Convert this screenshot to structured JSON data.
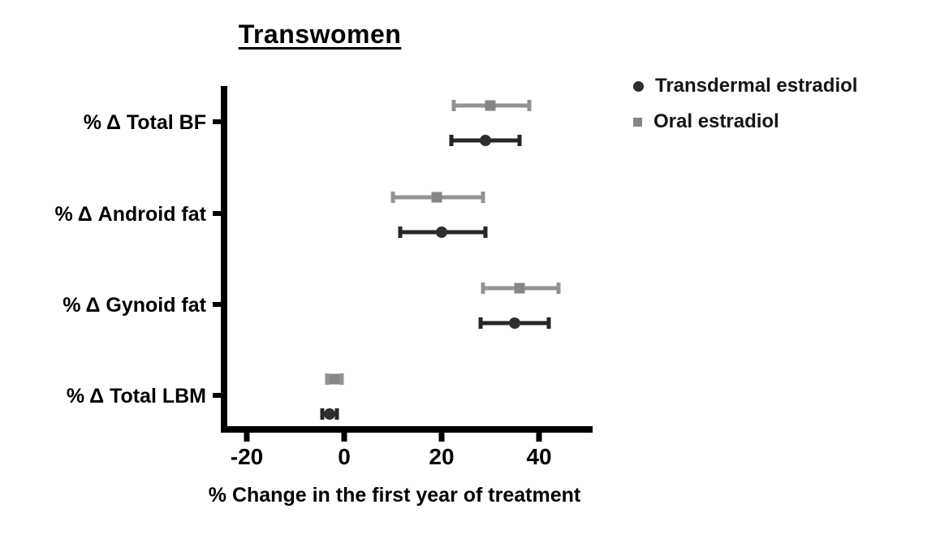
{
  "chart_data": {
    "type": "scatter",
    "subtype": "horizontal-forest-plot-with-error-bars",
    "title": "Transwomen",
    "xlabel": "% Change in the first year of treatment",
    "categories": [
      "% Δ Total BF",
      "% Δ Android fat",
      "% Δ Gynoid fat",
      "% Δ Total LBM"
    ],
    "x_ticks": [
      -20,
      0,
      20,
      40
    ],
    "xlim": [
      -26,
      51
    ],
    "grid": false,
    "legend_position": "top-right",
    "series": [
      {
        "name": "Transdermal estradiol",
        "marker": "circle",
        "color": "#2e2e30",
        "line_color": "#262626",
        "values": [
          29,
          20,
          35,
          -3
        ],
        "ci_low": [
          22,
          11.5,
          28,
          -4.5
        ],
        "ci_high": [
          36,
          29,
          42,
          -1.5
        ]
      },
      {
        "name": "Oral estradiol",
        "marker": "square",
        "color": "#868686",
        "line_color": "#939393",
        "values": [
          30,
          19,
          36,
          -2
        ],
        "ci_low": [
          22.5,
          10,
          28.5,
          -3.5
        ],
        "ci_high": [
          38,
          28.5,
          44,
          -0.5
        ]
      }
    ]
  }
}
